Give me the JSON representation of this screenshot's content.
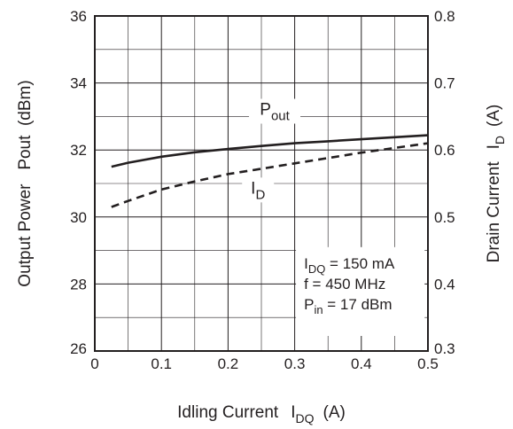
{
  "chart_data": {
    "type": "line",
    "x_axis": {
      "label": "Idling Current",
      "symbol": "I",
      "symbol_sub": "DQ",
      "unit": "(A)",
      "range": [
        0,
        0.5
      ],
      "ticks": [
        {
          "v": 0,
          "label": "0"
        },
        {
          "v": 0.1,
          "label": "0.1"
        },
        {
          "v": 0.2,
          "label": "0.2"
        },
        {
          "v": 0.3,
          "label": "0.3"
        },
        {
          "v": 0.4,
          "label": "0.4"
        },
        {
          "v": 0.5,
          "label": "0.5"
        }
      ]
    },
    "y_left": {
      "label": "Output Power   Pout  (dBm)",
      "range": [
        26,
        36
      ],
      "ticks": [
        {
          "v": 26,
          "label": "26"
        },
        {
          "v": 28,
          "label": "28"
        },
        {
          "v": 30,
          "label": "30"
        },
        {
          "v": 32,
          "label": "32"
        },
        {
          "v": 34,
          "label": "34"
        },
        {
          "v": 36,
          "label": "36"
        }
      ]
    },
    "y_right": {
      "label": "Drain Current",
      "symbol": "I",
      "symbol_sub": "D",
      "unit": "(A)",
      "range": [
        0.3,
        0.8
      ],
      "ticks": [
        {
          "v": 0.3,
          "label": "0.3"
        },
        {
          "v": 0.4,
          "label": "0.4"
        },
        {
          "v": 0.5,
          "label": "0.5"
        },
        {
          "v": 0.6,
          "label": "0.6"
        },
        {
          "v": 0.7,
          "label": "0.7"
        },
        {
          "v": 0.8,
          "label": "0.8"
        }
      ]
    },
    "grid": true,
    "series": [
      {
        "name": "Pout",
        "label_main": "P",
        "label_sub": "out",
        "axis": "left",
        "style": "solid",
        "x": [
          0.025,
          0.05,
          0.1,
          0.15,
          0.2,
          0.25,
          0.3,
          0.35,
          0.4,
          0.45,
          0.5
        ],
        "y": [
          31.5,
          31.62,
          31.8,
          31.93,
          32.03,
          32.12,
          32.2,
          32.26,
          32.32,
          32.38,
          32.44
        ]
      },
      {
        "name": "ID",
        "label_main": "I",
        "label_sub": "D",
        "axis": "right",
        "style": "dashed",
        "x": [
          0.025,
          0.05,
          0.1,
          0.15,
          0.2,
          0.25,
          0.3,
          0.35,
          0.4,
          0.45,
          0.5
        ],
        "y": [
          0.515,
          0.524,
          0.541,
          0.553,
          0.564,
          0.572,
          0.58,
          0.588,
          0.596,
          0.603,
          0.61
        ]
      }
    ],
    "conditions": [
      {
        "main": "I",
        "sub": "DQ",
        "rest": " = 150 mA"
      },
      {
        "main": "f = 450 MHz",
        "sub": "",
        "rest": ""
      },
      {
        "main": "P",
        "sub": "in",
        "rest": " = 17 dBm"
      }
    ],
    "colors": {
      "line": "#231f20",
      "grid": "#231f20",
      "text": "#231f20"
    }
  }
}
